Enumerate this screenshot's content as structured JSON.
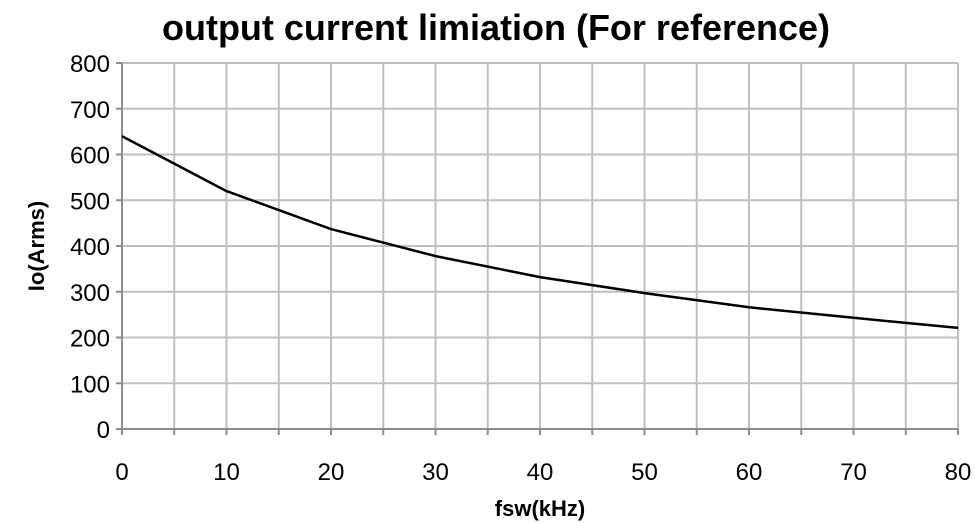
{
  "chart_data": {
    "type": "line",
    "title": "output current limiation (For reference)",
    "xlabel": "fsw(kHz)",
    "ylabel": "Io(Arms)",
    "xlim": [
      0,
      80
    ],
    "ylim": [
      0,
      800
    ],
    "xticks": [
      0,
      10,
      20,
      30,
      40,
      50,
      60,
      70,
      80
    ],
    "yticks": [
      0,
      100,
      200,
      300,
      400,
      500,
      600,
      700,
      800
    ],
    "x_minor_grid_step": 5,
    "grid": true,
    "legend": "none",
    "series": [
      {
        "color": "#000000",
        "x": [
          0,
          10,
          20,
          30,
          40,
          50,
          60,
          70,
          80
        ],
        "y": [
          640,
          520,
          437,
          378,
          332,
          297,
          266,
          243,
          221
        ]
      }
    ]
  }
}
